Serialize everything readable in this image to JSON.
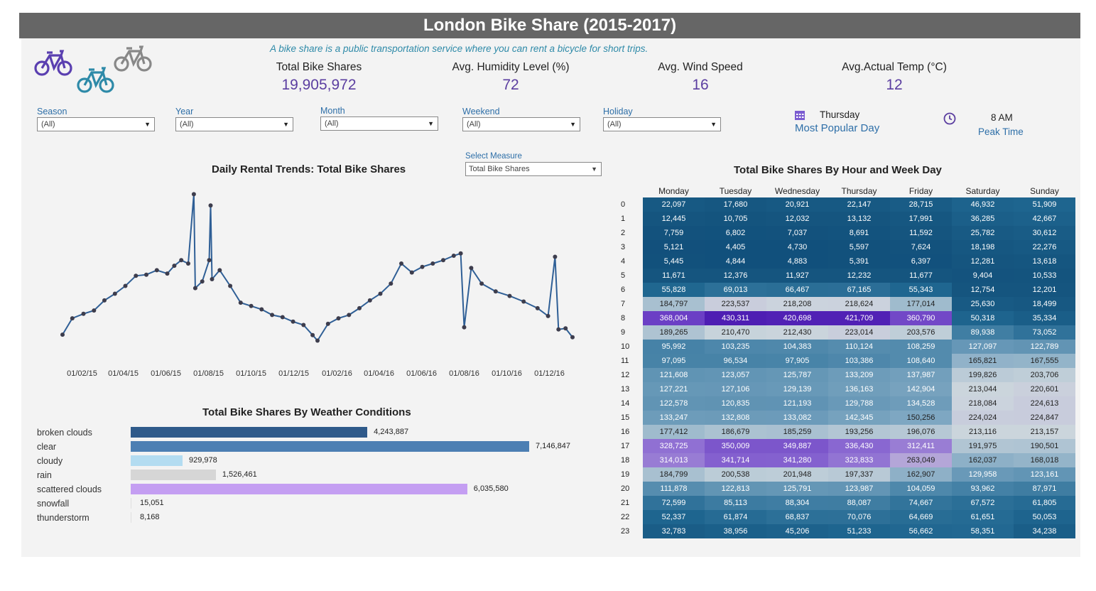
{
  "header": {
    "title": "London Bike Share (2015-2017)",
    "subtitle": "A bike share is a public transportation service where you can rent a bicycle for short trips."
  },
  "kpis": [
    {
      "label": "Total Bike Shares",
      "value": "19,905,972"
    },
    {
      "label": "Avg. Humidity Level (%)",
      "value": "72"
    },
    {
      "label": "Avg. Wind Speed",
      "value": "16"
    },
    {
      "label": "Avg.Actual Temp (°C)",
      "value": "12"
    }
  ],
  "filters": [
    {
      "label": "Season",
      "value": "(All)"
    },
    {
      "label": "Year",
      "value": "(All)"
    },
    {
      "label": "Month",
      "value": "(All)"
    },
    {
      "label": "Weekend",
      "value": "(All)"
    },
    {
      "label": "Holiday",
      "value": "(All)"
    }
  ],
  "popular_day": {
    "value": "Thursday",
    "caption": "Most Popular Day"
  },
  "peak_time": {
    "value": "8 AM",
    "caption": "Peak Time"
  },
  "measure": {
    "label": "Select Measure",
    "value": "Total Bike Shares"
  },
  "colors": {
    "title_bar": "#666666",
    "line": "#2f5f96",
    "accent": "#5b3ea0",
    "link": "#2e6fa8"
  },
  "icons": [
    "bicycle-icon",
    "calendar-icon",
    "clock-icon"
  ],
  "chart_data": [
    {
      "type": "line",
      "title": "Daily Rental Trends: Total Bike Shares",
      "x_tick_labels": [
        "01/02/15",
        "01/04/15",
        "01/06/15",
        "01/08/15",
        "01/10/15",
        "01/12/15",
        "01/02/16",
        "01/04/16",
        "01/06/16",
        "01/08/16",
        "01/10/16",
        "01/12/16"
      ],
      "x_range": [
        "2015-01-04",
        "2017-01-03"
      ],
      "ylim": [
        0,
        75000
      ],
      "grid": false,
      "series": [
        {
          "values": [
            [
              0,
              9200
            ],
            [
              14,
              16500
            ],
            [
              30,
              18500
            ],
            [
              45,
              20000
            ],
            [
              60,
              24500
            ],
            [
              75,
              27500
            ],
            [
              90,
              31000
            ],
            [
              105,
              35500
            ],
            [
              120,
              36000
            ],
            [
              135,
              38000
            ],
            [
              150,
              36500
            ],
            [
              160,
              40000
            ],
            [
              170,
              42500
            ],
            [
              180,
              41000
            ],
            [
              188,
              72000
            ],
            [
              190,
              30000
            ],
            [
              200,
              33000
            ],
            [
              210,
              42500
            ],
            [
              212,
              67000
            ],
            [
              214,
              34000
            ],
            [
              225,
              38000
            ],
            [
              240,
              31000
            ],
            [
              255,
              23500
            ],
            [
              270,
              22000
            ],
            [
              285,
              20500
            ],
            [
              300,
              18000
            ],
            [
              315,
              17000
            ],
            [
              330,
              15000
            ],
            [
              345,
              13500
            ],
            [
              358,
              9000
            ],
            [
              365,
              6500
            ],
            [
              380,
              14000
            ],
            [
              395,
              16500
            ],
            [
              410,
              18000
            ],
            [
              425,
              21000
            ],
            [
              440,
              24500
            ],
            [
              455,
              27500
            ],
            [
              470,
              32000
            ],
            [
              485,
              41000
            ],
            [
              500,
              37000
            ],
            [
              515,
              39500
            ],
            [
              530,
              41000
            ],
            [
              545,
              42500
            ],
            [
              560,
              44500
            ],
            [
              570,
              45500
            ],
            [
              575,
              12500
            ],
            [
              585,
              39000
            ],
            [
              600,
              32000
            ],
            [
              620,
              28500
            ],
            [
              640,
              26500
            ],
            [
              660,
              24000
            ],
            [
              680,
              21000
            ],
            [
              695,
              17500
            ],
            [
              705,
              44000
            ],
            [
              710,
              11500
            ],
            [
              720,
              12000
            ],
            [
              730,
              8000
            ]
          ]
        }
      ]
    },
    {
      "type": "bar",
      "title": "Total Bike Shares By Weather Conditions",
      "categories": [
        "broken clouds",
        "clear",
        "cloudy",
        "rain",
        "scattered clouds",
        "snowfall",
        "thunderstorm"
      ],
      "values": [
        4243887,
        7146847,
        929978,
        1526461,
        6035580,
        15051,
        8168
      ],
      "value_labels": [
        "4,243,887",
        "7,146,847",
        "929,978",
        "1,526,461",
        "6,035,580",
        "15,051",
        "8,168"
      ],
      "colors": [
        "#2f5a8a",
        "#4c7fb3",
        "#b3dcf1",
        "#d6d6d6",
        "#c49ef2",
        "#e0e0e0",
        "#e0e0e0"
      ]
    },
    {
      "type": "heatmap",
      "title": "Total Bike Shares  By Hour and Week Day",
      "columns": [
        "Monday",
        "Tuesday",
        "Wednesday",
        "Thursday",
        "Friday",
        "Saturday",
        "Sunday"
      ],
      "rows": [
        "0",
        "1",
        "2",
        "3",
        "4",
        "5",
        "6",
        "7",
        "8",
        "9",
        "10",
        "11",
        "12",
        "13",
        "14",
        "15",
        "16",
        "17",
        "18",
        "19",
        "20",
        "21",
        "22",
        "23"
      ],
      "values": [
        [
          22097,
          17680,
          20921,
          22147,
          28715,
          46932,
          51909
        ],
        [
          12445,
          10705,
          12032,
          13132,
          17991,
          36285,
          42667
        ],
        [
          7759,
          6802,
          7037,
          8691,
          11592,
          25782,
          30612
        ],
        [
          5121,
          4405,
          4730,
          5597,
          7624,
          18198,
          22276
        ],
        [
          5445,
          4844,
          4883,
          5391,
          6397,
          12281,
          13618
        ],
        [
          11671,
          12376,
          11927,
          12232,
          11677,
          9404,
          10533
        ],
        [
          55828,
          69013,
          66467,
          67165,
          55343,
          12754,
          12201
        ],
        [
          184797,
          223537,
          218208,
          218624,
          177014,
          25630,
          18499
        ],
        [
          368004,
          430311,
          420698,
          421709,
          360790,
          50318,
          35334
        ],
        [
          189265,
          210470,
          212430,
          223014,
          203576,
          89938,
          73052
        ],
        [
          95992,
          103235,
          104383,
          110124,
          108259,
          127097,
          122789
        ],
        [
          97095,
          96534,
          97905,
          103386,
          108640,
          165821,
          167555
        ],
        [
          121608,
          123057,
          125787,
          133209,
          137987,
          199826,
          203706
        ],
        [
          127221,
          127106,
          129139,
          136163,
          142904,
          213044,
          220601
        ],
        [
          122578,
          120835,
          121193,
          129788,
          134528,
          218084,
          224613
        ],
        [
          133247,
          132808,
          133082,
          142345,
          150256,
          224024,
          224847
        ],
        [
          177412,
          186679,
          185259,
          193256,
          196076,
          213116,
          213157
        ],
        [
          328725,
          350009,
          349887,
          336430,
          312411,
          191975,
          190501
        ],
        [
          314013,
          341714,
          341280,
          323833,
          263049,
          162037,
          168018
        ],
        [
          184799,
          200538,
          201948,
          197337,
          162907,
          129958,
          123161
        ],
        [
          111878,
          122813,
          125791,
          123987,
          104059,
          93962,
          87971
        ],
        [
          72599,
          85113,
          88304,
          88087,
          74667,
          67572,
          61805
        ],
        [
          52337,
          61874,
          68837,
          70076,
          64669,
          61651,
          50053
        ],
        [
          32783,
          38956,
          45206,
          51233,
          56662,
          58351,
          34238
        ]
      ]
    }
  ]
}
